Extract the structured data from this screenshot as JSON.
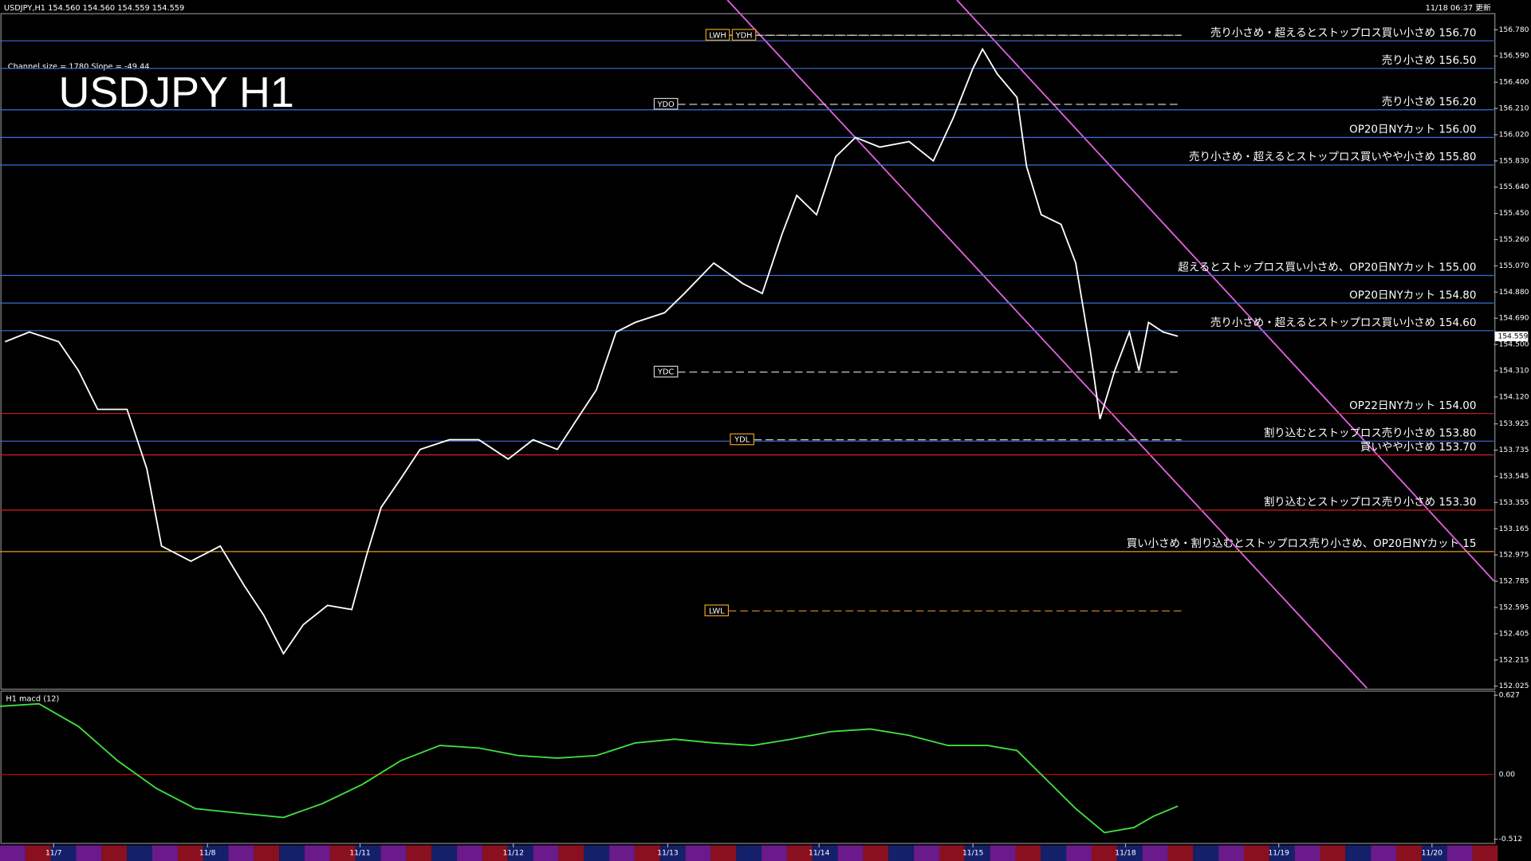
{
  "chart_data": {
    "type": "line",
    "title": "USDJPY H1",
    "header": "USDJPY,H1  154.560 154.560 154.559 154.559",
    "updated": "11/18 06:37 更新",
    "channel_info": "Channel size = 1780 Slope = -49.44",
    "xlim": [
      0,
      234
    ],
    "ylim": [
      152.01,
      156.84
    ],
    "yticks": [
      {
        "value": 156.78,
        "label": "156.780"
      },
      {
        "value": 156.59,
        "label": "156.590"
      },
      {
        "value": 156.4,
        "label": "156.400"
      },
      {
        "value": 156.21,
        "label": "156.210"
      },
      {
        "value": 156.02,
        "label": "156.020"
      },
      {
        "value": 155.83,
        "label": "155.830"
      },
      {
        "value": 155.64,
        "label": "155.640"
      },
      {
        "value": 155.45,
        "label": "155.450"
      },
      {
        "value": 155.26,
        "label": "155.260"
      },
      {
        "value": 155.07,
        "label": "155.070"
      },
      {
        "value": 154.88,
        "label": "154.880"
      },
      {
        "value": 154.69,
        "label": "154.690"
      },
      {
        "value": 154.5,
        "label": "154.500"
      },
      {
        "value": 154.31,
        "label": "154.310"
      },
      {
        "value": 154.12,
        "label": "154.120"
      },
      {
        "value": 153.925,
        "label": "153.925"
      },
      {
        "value": 153.735,
        "label": "153.735"
      },
      {
        "value": 153.545,
        "label": "153.545"
      },
      {
        "value": 153.355,
        "label": "153.355"
      },
      {
        "value": 153.165,
        "label": "153.165"
      },
      {
        "value": 152.975,
        "label": "152.975"
      },
      {
        "value": 152.785,
        "label": "152.785"
      },
      {
        "value": 152.595,
        "label": "152.595"
      },
      {
        "value": 152.405,
        "label": "152.405"
      },
      {
        "value": 152.215,
        "label": "152.215"
      },
      {
        "value": 152.025,
        "label": "152.025"
      }
    ],
    "xticks": [
      {
        "value": 8.4,
        "label": "11/7"
      },
      {
        "value": 32.5,
        "label": "11/8"
      },
      {
        "value": 56.4,
        "label": "11/11"
      },
      {
        "value": 80.4,
        "label": "11/12"
      },
      {
        "value": 104.6,
        "label": "11/13"
      },
      {
        "value": 128.3,
        "label": "11/14"
      },
      {
        "value": 152.4,
        "label": "11/15"
      },
      {
        "value": 176.3,
        "label": "11/18"
      },
      {
        "value": 200.3,
        "label": "11/19"
      },
      {
        "value": 224.3,
        "label": "11/20"
      }
    ],
    "x": [
      0.8,
      4.6,
      9.2,
      12.3,
      15.3,
      19.9,
      23.0,
      25.3,
      29.9,
      34.5,
      38.3,
      41.3,
      44.4,
      47.5,
      51.3,
      55.1,
      57.4,
      59.7,
      62.8,
      65.8,
      70.4,
      75.0,
      79.6,
      83.5,
      87.3,
      90.4,
      93.4,
      96.5,
      99.5,
      104.1,
      107.2,
      111.8,
      116.4,
      119.4,
      122.5,
      124.8,
      127.9,
      130.9,
      134.0,
      137.8,
      142.4,
      146.2,
      149.3,
      152.4,
      153.9,
      156.2,
      159.3,
      160.8,
      163.1,
      166.2,
      168.5,
      170.8,
      172.3,
      174.6,
      176.9,
      178.4,
      179.9,
      182.2,
      184.5
    ],
    "series": [
      {
        "color": "#ffffff",
        "values": [
          154.52,
          154.59,
          154.52,
          154.31,
          154.03,
          154.03,
          153.6,
          153.04,
          152.93,
          153.04,
          152.75,
          152.54,
          152.26,
          152.47,
          152.61,
          152.58,
          152.97,
          153.32,
          153.53,
          153.74,
          153.81,
          153.81,
          153.67,
          153.81,
          153.74,
          153.96,
          154.17,
          154.59,
          154.66,
          154.73,
          154.87,
          155.09,
          154.94,
          154.87,
          155.3,
          155.58,
          155.44,
          155.86,
          156.0,
          155.93,
          155.97,
          155.83,
          156.14,
          156.5,
          156.64,
          156.46,
          156.29,
          155.79,
          155.44,
          155.37,
          155.09,
          154.45,
          153.96,
          154.31,
          154.59,
          154.31,
          154.66,
          154.59,
          154.56
        ]
      }
    ],
    "levels": [
      {
        "label": "売り小さめ・超えるとストップロス買い小さめ 156.70",
        "value": 156.7,
        "color": "#3a6fd8"
      },
      {
        "label": "売り小さめ 156.50",
        "value": 156.5,
        "color": "#3a6fd8"
      },
      {
        "label": "売り小さめ 156.20",
        "value": 156.2,
        "color": "#3a6fd8"
      },
      {
        "label": "OP20日NYカット 156.00",
        "value": 156.0,
        "color": "#3a6fd8"
      },
      {
        "label": "売り小さめ・超えるとストップロス買いやや小さめ 155.80",
        "value": 155.8,
        "color": "#3a6fd8"
      },
      {
        "label": "超えるとストップロス買い小さめ、OP20日NYカット 155.00",
        "value": 155.0,
        "color": "#3a6fd8"
      },
      {
        "label": "OP20日NYカット 154.80",
        "value": 154.8,
        "color": "#3a6fd8"
      },
      {
        "label": "売り小さめ・超えるとストップロス買い小さめ 154.60",
        "value": 154.6,
        "color": "#3a6fd8"
      },
      {
        "label": "OP22日NYカット 154.00",
        "value": 154.0,
        "color": "#d02020"
      },
      {
        "label": "割り込むとストップロス売り小さめ 153.80",
        "value": 153.8,
        "color": "#3a6fd8"
      },
      {
        "label": "買いやや小さめ 153.70",
        "value": 153.7,
        "color": "#d02020"
      },
      {
        "label": "割り込むとストップロス売り小さめ 153.30",
        "value": 153.3,
        "color": "#d02020"
      },
      {
        "label": "買い小さめ・割り込むとストップロス売り小さめ、OP20日NYカット 15",
        "value": 153.0,
        "color": "#e0a020"
      }
    ],
    "markers": [
      {
        "label": "LWH",
        "value": 156.74
      },
      {
        "label": "YDH",
        "value": 156.74
      },
      {
        "label": "YDO",
        "value": 156.24
      },
      {
        "label": "YDC",
        "value": 154.3
      },
      {
        "label": "YDL",
        "value": 153.81
      },
      {
        "label": "LWL",
        "value": 152.57
      }
    ],
    "current_price": {
      "value": 154.559,
      "label": "154.559"
    },
    "macd": {
      "title": "H1 macd (12)",
      "color": "#40e040",
      "ylim": [
        -0.53,
        0.66
      ],
      "yticks": [
        {
          "value": 0.627,
          "label": "0.627"
        },
        {
          "value": 0,
          "label": "0.00"
        },
        {
          "value": -0.512,
          "label": "-0.512"
        }
      ],
      "x": [
        0,
        6.1,
        12.3,
        18.4,
        24.5,
        30.6,
        38.3,
        44.4,
        50.5,
        56.7,
        62.8,
        68.9,
        75.0,
        81.2,
        87.3,
        93.4,
        99.5,
        105.7,
        111.8,
        117.9,
        124.0,
        130.2,
        136.3,
        142.4,
        148.5,
        154.7,
        159.3,
        163.9,
        168.5,
        173.0,
        177.6,
        180.7,
        184.5
      ],
      "values": [
        0.54,
        0.56,
        0.38,
        0.11,
        -0.11,
        -0.27,
        -0.31,
        -0.34,
        -0.23,
        -0.08,
        0.11,
        0.23,
        0.21,
        0.15,
        0.13,
        0.15,
        0.25,
        0.28,
        0.25,
        0.23,
        0.28,
        0.34,
        0.36,
        0.31,
        0.23,
        0.23,
        0.19,
        -0.04,
        -0.27,
        -0.46,
        -0.42,
        -0.33,
        -0.25
      ]
    }
  }
}
